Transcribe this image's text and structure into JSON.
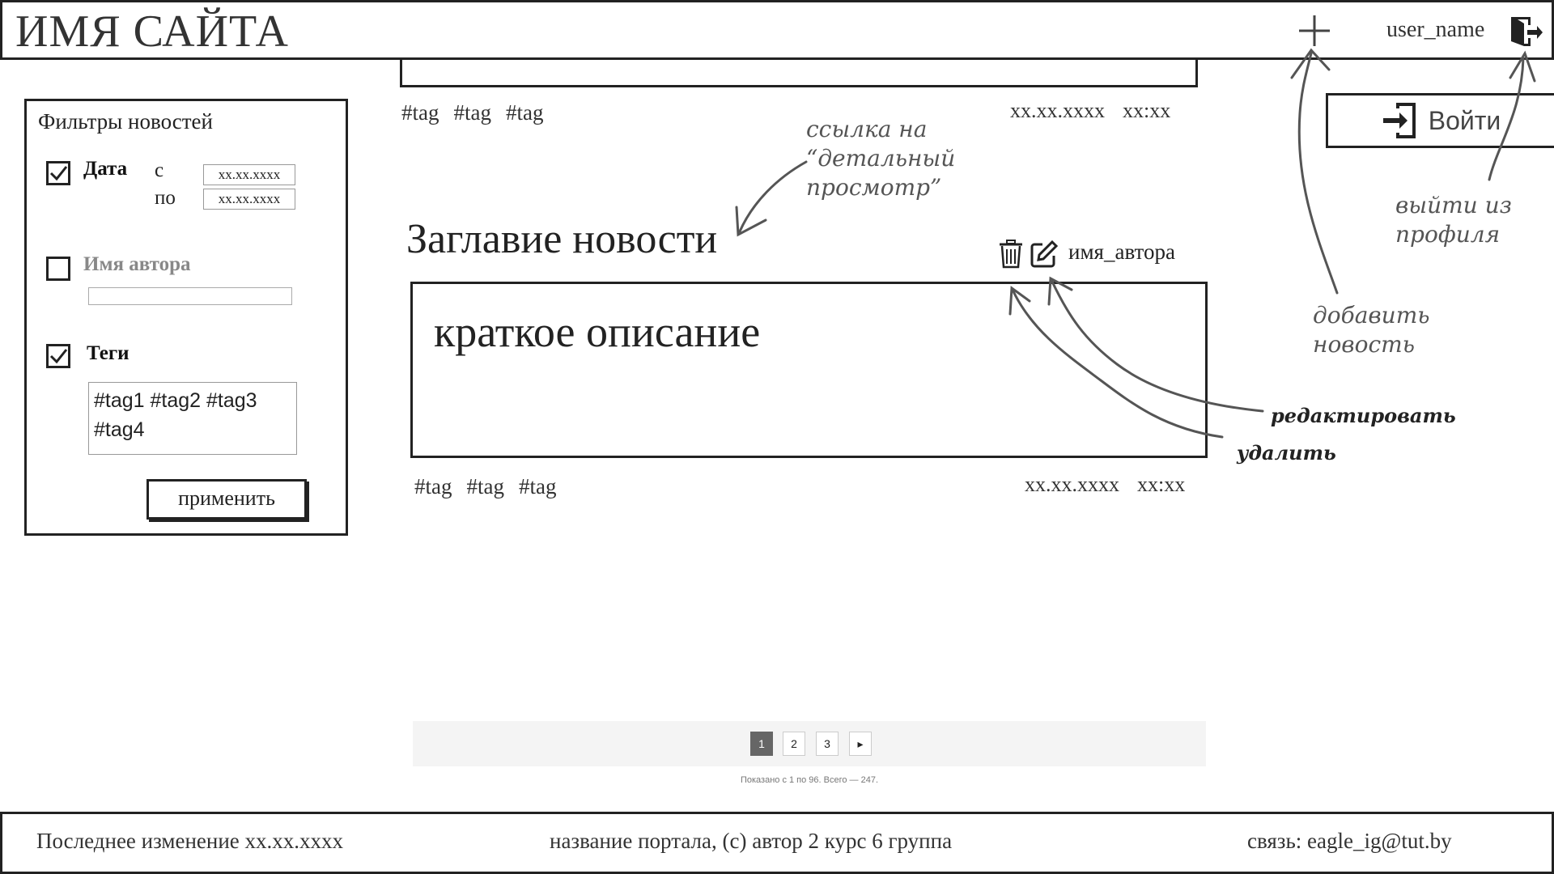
{
  "header": {
    "site_title": "ИМЯ САЙТА",
    "add_icon": "plus-icon",
    "user_name": "user_name",
    "logout_icon": "logout-icon"
  },
  "login": {
    "label": "Войти",
    "icon": "login-icon"
  },
  "previous_news": {
    "tags": [
      "#tag",
      "#tag",
      "#tag"
    ],
    "date": "xx.xx.xxxx",
    "time": "xx:xx"
  },
  "filters": {
    "title": "Фильтры новостей",
    "date": {
      "label": "Дата",
      "checked": true,
      "from_label": "с",
      "to_label": "по",
      "from_value": "xx.xx.xxxx",
      "to_value": "xx.xx.xxxx"
    },
    "author": {
      "label": "Имя автора",
      "checked": false
    },
    "tags": {
      "label": "Теги",
      "checked": true,
      "value": "#tag1 #tag2 #tag3 #tag4"
    },
    "apply_label": "применить"
  },
  "news": {
    "title": "Заглавие новости",
    "author": "имя_автора",
    "short_description": "краткое описание",
    "tags": [
      "#tag",
      "#tag",
      "#tag"
    ],
    "date": "xx.xx.xxxx",
    "time": "xx:xx",
    "delete_icon": "trash-icon",
    "edit_icon": "edit-icon"
  },
  "pagination": {
    "pages": [
      "1",
      "2",
      "3"
    ],
    "active": "1",
    "next": "▸",
    "info": "Показано с 1 по 96. Всего — 247."
  },
  "annotations": {
    "detail_link": [
      "ссылка на",
      "“детальный",
      "просмотр”"
    ],
    "add_news": [
      "добавить",
      "новость"
    ],
    "logout": [
      "выйти из",
      "профиля"
    ],
    "edit": "редактировать",
    "delete": "удалить"
  },
  "footer": {
    "last_changed": "Последнее изменение  xx.xx.xxxx",
    "portal": "название портала, (с) автор 2 курс 6 группа",
    "contact": "связь:   eagle_ig@tut.by"
  }
}
